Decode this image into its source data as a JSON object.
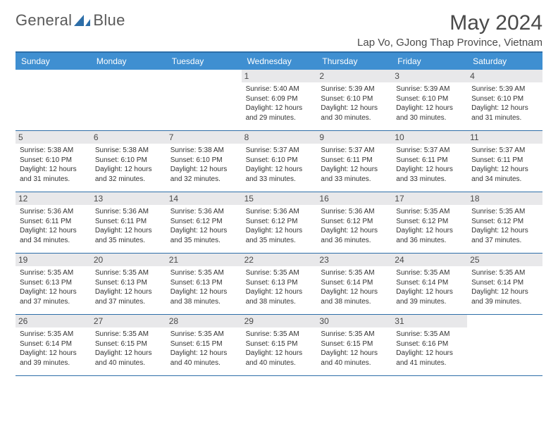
{
  "brand": {
    "word1": "General",
    "word2": "Blue"
  },
  "title": "May 2024",
  "location": "Lap Vo, GJong Thap Province, Vietnam",
  "colors": {
    "header_bg": "#3f8fd1",
    "rule": "#2d6ea8",
    "daynum_bg": "#e8e8ea",
    "text": "#333333",
    "logo_accent": "#2d6ea8"
  },
  "dayNames": [
    "Sunday",
    "Monday",
    "Tuesday",
    "Wednesday",
    "Thursday",
    "Friday",
    "Saturday"
  ],
  "weeks": [
    [
      null,
      null,
      null,
      {
        "n": "1",
        "sr": "5:40 AM",
        "ss": "6:09 PM",
        "dl": "12 hours and 29 minutes."
      },
      {
        "n": "2",
        "sr": "5:39 AM",
        "ss": "6:10 PM",
        "dl": "12 hours and 30 minutes."
      },
      {
        "n": "3",
        "sr": "5:39 AM",
        "ss": "6:10 PM",
        "dl": "12 hours and 30 minutes."
      },
      {
        "n": "4",
        "sr": "5:39 AM",
        "ss": "6:10 PM",
        "dl": "12 hours and 31 minutes."
      }
    ],
    [
      {
        "n": "5",
        "sr": "5:38 AM",
        "ss": "6:10 PM",
        "dl": "12 hours and 31 minutes."
      },
      {
        "n": "6",
        "sr": "5:38 AM",
        "ss": "6:10 PM",
        "dl": "12 hours and 32 minutes."
      },
      {
        "n": "7",
        "sr": "5:38 AM",
        "ss": "6:10 PM",
        "dl": "12 hours and 32 minutes."
      },
      {
        "n": "8",
        "sr": "5:37 AM",
        "ss": "6:10 PM",
        "dl": "12 hours and 33 minutes."
      },
      {
        "n": "9",
        "sr": "5:37 AM",
        "ss": "6:11 PM",
        "dl": "12 hours and 33 minutes."
      },
      {
        "n": "10",
        "sr": "5:37 AM",
        "ss": "6:11 PM",
        "dl": "12 hours and 33 minutes."
      },
      {
        "n": "11",
        "sr": "5:37 AM",
        "ss": "6:11 PM",
        "dl": "12 hours and 34 minutes."
      }
    ],
    [
      {
        "n": "12",
        "sr": "5:36 AM",
        "ss": "6:11 PM",
        "dl": "12 hours and 34 minutes."
      },
      {
        "n": "13",
        "sr": "5:36 AM",
        "ss": "6:11 PM",
        "dl": "12 hours and 35 minutes."
      },
      {
        "n": "14",
        "sr": "5:36 AM",
        "ss": "6:12 PM",
        "dl": "12 hours and 35 minutes."
      },
      {
        "n": "15",
        "sr": "5:36 AM",
        "ss": "6:12 PM",
        "dl": "12 hours and 35 minutes."
      },
      {
        "n": "16",
        "sr": "5:36 AM",
        "ss": "6:12 PM",
        "dl": "12 hours and 36 minutes."
      },
      {
        "n": "17",
        "sr": "5:35 AM",
        "ss": "6:12 PM",
        "dl": "12 hours and 36 minutes."
      },
      {
        "n": "18",
        "sr": "5:35 AM",
        "ss": "6:12 PM",
        "dl": "12 hours and 37 minutes."
      }
    ],
    [
      {
        "n": "19",
        "sr": "5:35 AM",
        "ss": "6:13 PM",
        "dl": "12 hours and 37 minutes."
      },
      {
        "n": "20",
        "sr": "5:35 AM",
        "ss": "6:13 PM",
        "dl": "12 hours and 37 minutes."
      },
      {
        "n": "21",
        "sr": "5:35 AM",
        "ss": "6:13 PM",
        "dl": "12 hours and 38 minutes."
      },
      {
        "n": "22",
        "sr": "5:35 AM",
        "ss": "6:13 PM",
        "dl": "12 hours and 38 minutes."
      },
      {
        "n": "23",
        "sr": "5:35 AM",
        "ss": "6:14 PM",
        "dl": "12 hours and 38 minutes."
      },
      {
        "n": "24",
        "sr": "5:35 AM",
        "ss": "6:14 PM",
        "dl": "12 hours and 39 minutes."
      },
      {
        "n": "25",
        "sr": "5:35 AM",
        "ss": "6:14 PM",
        "dl": "12 hours and 39 minutes."
      }
    ],
    [
      {
        "n": "26",
        "sr": "5:35 AM",
        "ss": "6:14 PM",
        "dl": "12 hours and 39 minutes."
      },
      {
        "n": "27",
        "sr": "5:35 AM",
        "ss": "6:15 PM",
        "dl": "12 hours and 40 minutes."
      },
      {
        "n": "28",
        "sr": "5:35 AM",
        "ss": "6:15 PM",
        "dl": "12 hours and 40 minutes."
      },
      {
        "n": "29",
        "sr": "5:35 AM",
        "ss": "6:15 PM",
        "dl": "12 hours and 40 minutes."
      },
      {
        "n": "30",
        "sr": "5:35 AM",
        "ss": "6:15 PM",
        "dl": "12 hours and 40 minutes."
      },
      {
        "n": "31",
        "sr": "5:35 AM",
        "ss": "6:16 PM",
        "dl": "12 hours and 41 minutes."
      },
      null
    ]
  ],
  "labels": {
    "sunrise": "Sunrise: ",
    "sunset": "Sunset: ",
    "daylight": "Daylight: "
  }
}
